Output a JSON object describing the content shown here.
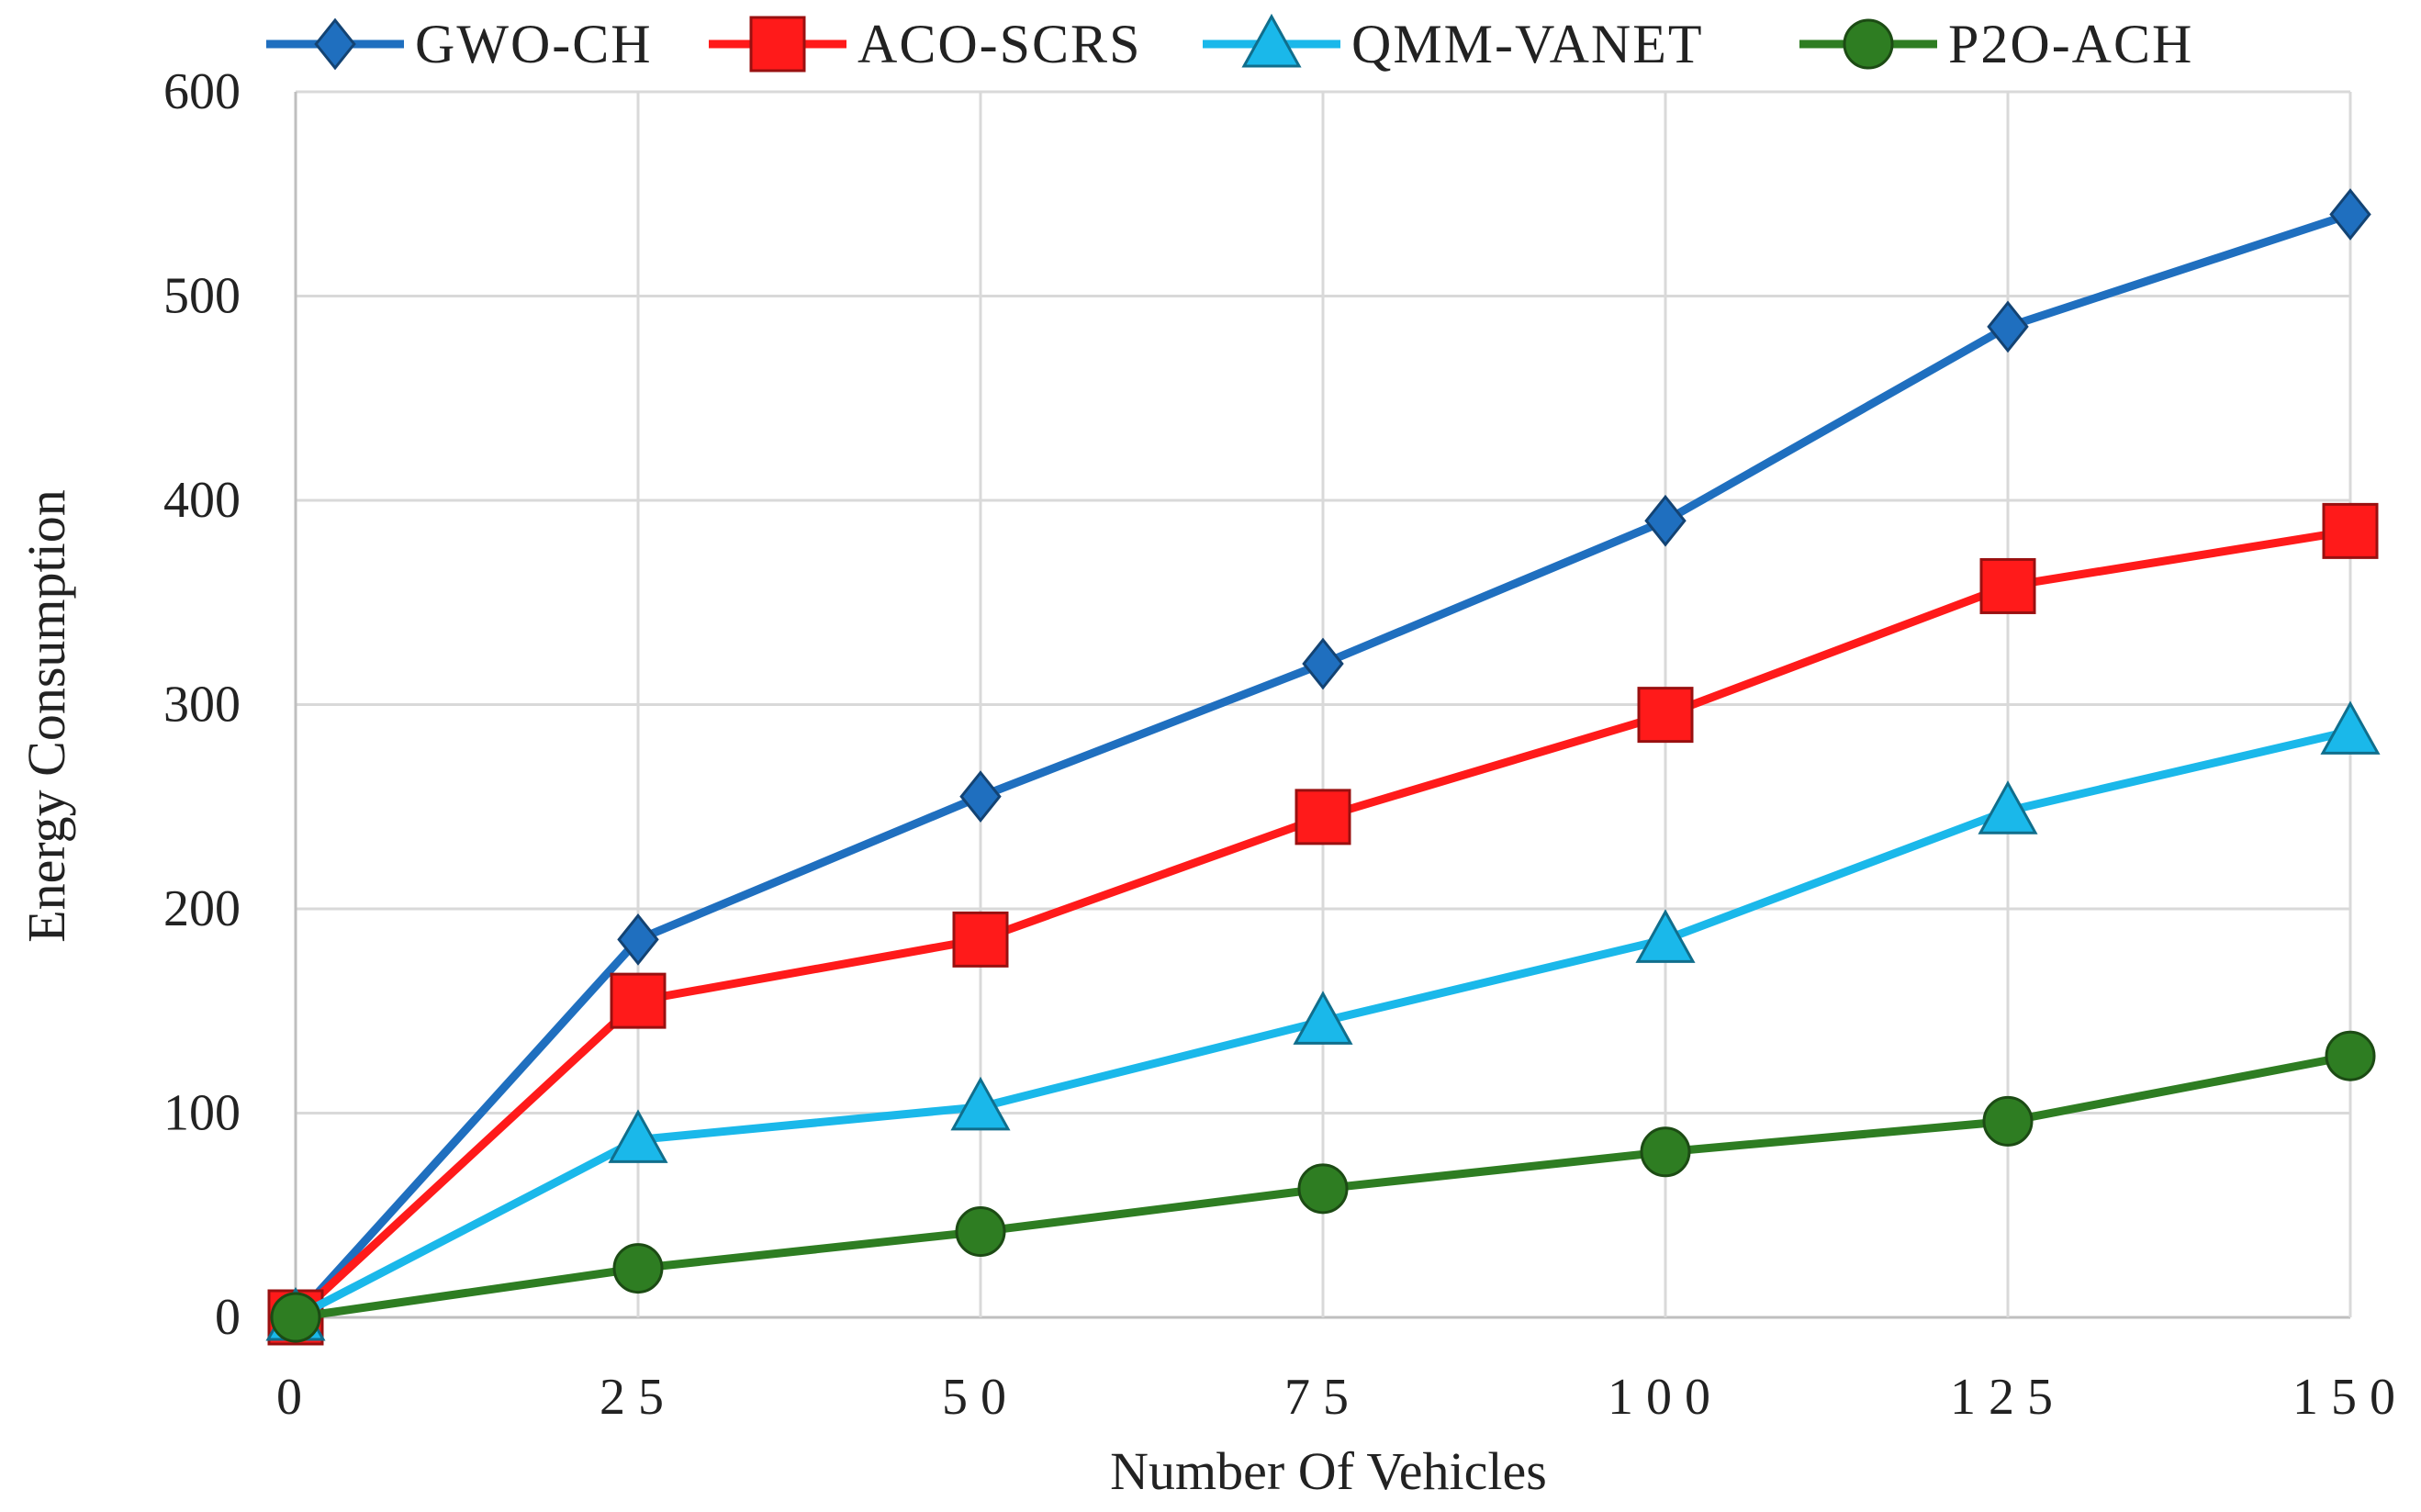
{
  "chart_data": {
    "type": "line",
    "title": "",
    "xlabel": "Number Of Vehicles",
    "ylabel": "Energy Consumption",
    "x": [
      0,
      25,
      50,
      75,
      100,
      125,
      150
    ],
    "x_tick_labels": [
      "0",
      "25",
      "50",
      "75",
      "100",
      "125",
      "150"
    ],
    "ylim": [
      0,
      600
    ],
    "y_ticks": [
      0,
      100,
      200,
      300,
      400,
      500,
      600
    ],
    "y_tick_labels": [
      "0",
      "100",
      "200",
      "300",
      "400",
      "500",
      "600"
    ],
    "grid": true,
    "legend_position": "top",
    "series": [
      {
        "name": "GWO-CH",
        "marker": "diamond",
        "color": "#1f6fbf",
        "values": [
          0,
          185,
          255,
          320,
          390,
          485,
          540
        ]
      },
      {
        "name": "ACO-SCRS",
        "marker": "square",
        "color": "#ff1a1a",
        "values": [
          0,
          155,
          185,
          245,
          295,
          358,
          385
        ]
      },
      {
        "name": "QMM-VANET",
        "marker": "triangle",
        "color": "#1ab8ea",
        "values": [
          0,
          87,
          103,
          145,
          185,
          248,
          287
        ]
      },
      {
        "name": "P2O-ACH",
        "marker": "circle",
        "color": "#2e7d22",
        "values": [
          0,
          24,
          42,
          63,
          81,
          96,
          128
        ]
      }
    ]
  }
}
